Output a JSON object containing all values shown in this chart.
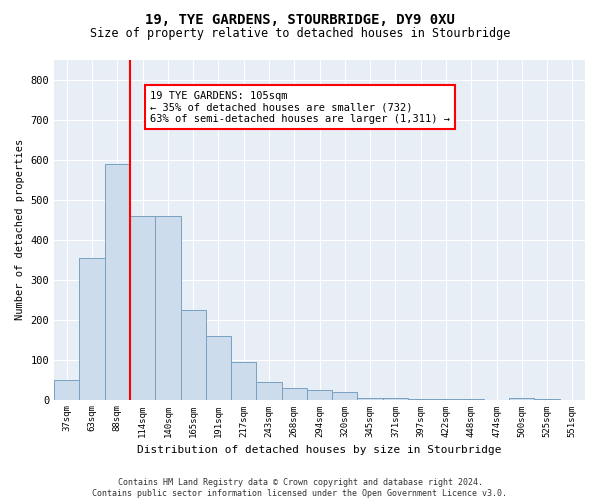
{
  "title": "19, TYE GARDENS, STOURBRIDGE, DY9 0XU",
  "subtitle": "Size of property relative to detached houses in Stourbridge",
  "xlabel": "Distribution of detached houses by size in Stourbridge",
  "ylabel": "Number of detached properties",
  "bar_color": "#ccdcec",
  "bar_edge_color": "#7aA0c0",
  "background_color": "#ffffff",
  "plot_bg_color": "#e8eef6",
  "grid_color": "#ffffff",
  "categories": [
    "37sqm",
    "63sqm",
    "88sqm",
    "114sqm",
    "140sqm",
    "165sqm",
    "191sqm",
    "217sqm",
    "243sqm",
    "268sqm",
    "294sqm",
    "320sqm",
    "345sqm",
    "371sqm",
    "397sqm",
    "422sqm",
    "448sqm",
    "474sqm",
    "500sqm",
    "525sqm",
    "551sqm"
  ],
  "values": [
    50,
    355,
    590,
    460,
    460,
    225,
    160,
    95,
    45,
    30,
    25,
    20,
    5,
    3,
    2,
    1,
    1,
    0,
    5,
    1,
    0
  ],
  "ylim": [
    0,
    850
  ],
  "yticks": [
    0,
    100,
    200,
    300,
    400,
    500,
    600,
    700,
    800
  ],
  "red_line_index": 2.5,
  "annotation_text": "19 TYE GARDENS: 105sqm\n← 35% of detached houses are smaller (732)\n63% of semi-detached houses are larger (1,311) →",
  "footnote": "Contains HM Land Registry data © Crown copyright and database right 2024.\nContains public sector information licensed under the Open Government Licence v3.0."
}
